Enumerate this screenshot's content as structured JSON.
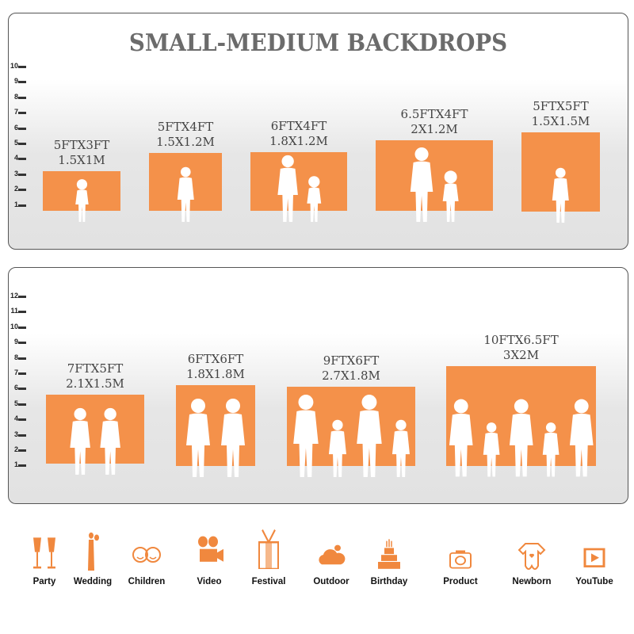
{
  "panel1": {
    "title": "SMALL-MEDIUM BACKDROPS",
    "scale": [
      "10",
      "9",
      "8",
      "7",
      "6",
      "5",
      "4",
      "3",
      "2",
      "1"
    ],
    "items": [
      {
        "size_ft": "5FTX3FT",
        "size_m": "1.5X1M",
        "people": 1
      },
      {
        "size_ft": "5FTX4FT",
        "size_m": "1.5X1.2M",
        "people": 1
      },
      {
        "size_ft": "6FTX4FT",
        "size_m": "1.8X1.2M",
        "people": 2
      },
      {
        "size_ft": "6.5FTX4FT",
        "size_m": "2X1.2M",
        "people": 2
      },
      {
        "size_ft": "5FTX5FT",
        "size_m": "1.5X1.5M",
        "people": 1
      }
    ]
  },
  "panel2": {
    "scale": [
      "12",
      "11",
      "10",
      "9",
      "8",
      "7",
      "6",
      "5",
      "4",
      "3",
      "2",
      "1"
    ],
    "items": [
      {
        "size_ft": "7FTX5FT",
        "size_m": "2.1X1.5M",
        "people": 2
      },
      {
        "size_ft": "6FTX6FT",
        "size_m": "1.8X1.8M",
        "people": 2
      },
      {
        "size_ft": "9FTX6FT",
        "size_m": "2.7X1.8M",
        "people": 4
      },
      {
        "size_ft": "10FTX6.5FT",
        "size_m": "3X2M",
        "people": 5
      }
    ]
  },
  "uses": [
    {
      "label": "Party",
      "icon": "champagne-glasses-icon"
    },
    {
      "label": "Wedding",
      "icon": "wedding-couple-icon"
    },
    {
      "label": "Children",
      "icon": "children-faces-icon"
    },
    {
      "label": "Video",
      "icon": "film-camera-icon"
    },
    {
      "label": "Festival",
      "icon": "gift-box-icon"
    },
    {
      "label": "Outdoor",
      "icon": "cloud-icon"
    },
    {
      "label": "Birthday",
      "icon": "birthday-cake-icon"
    },
    {
      "label": "Product",
      "icon": "camera-icon"
    },
    {
      "label": "Newborn",
      "icon": "baby-onesie-icon"
    },
    {
      "label": "YouTube",
      "icon": "play-button-icon"
    }
  ],
  "colors": {
    "backdrop": "#f4914a",
    "title": "#6b6b6b",
    "icon": "#f0883e"
  }
}
